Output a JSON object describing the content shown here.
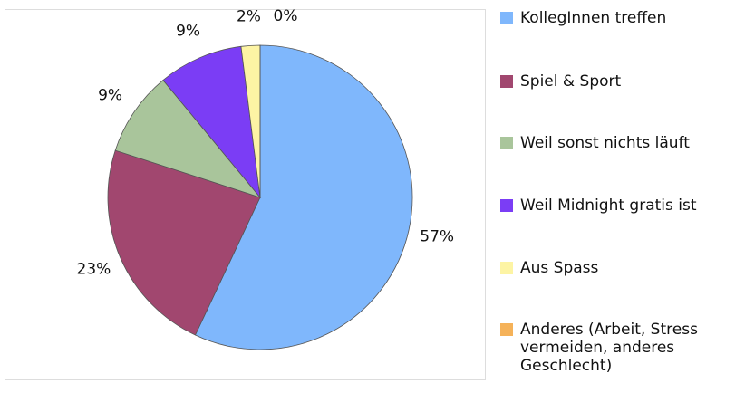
{
  "chart_data": {
    "type": "pie",
    "categories": [
      "KollegInnen treffen",
      "Spiel & Sport",
      "Weil sonst nichts läuft",
      "Weil Midnight gratis ist",
      "Aus Spass",
      "Anderes (Arbeit, Stress vermeiden, anderes Geschlecht)"
    ],
    "values": [
      57,
      23,
      9,
      9,
      2,
      0
    ],
    "value_labels": [
      "57%",
      "23%",
      "9%",
      "9%",
      "2%",
      "0%"
    ],
    "colors": [
      "#7fb7fc",
      "#a1476f",
      "#a9c59b",
      "#7b3df5",
      "#fdf4a4",
      "#f5b259"
    ],
    "legend": "right"
  }
}
